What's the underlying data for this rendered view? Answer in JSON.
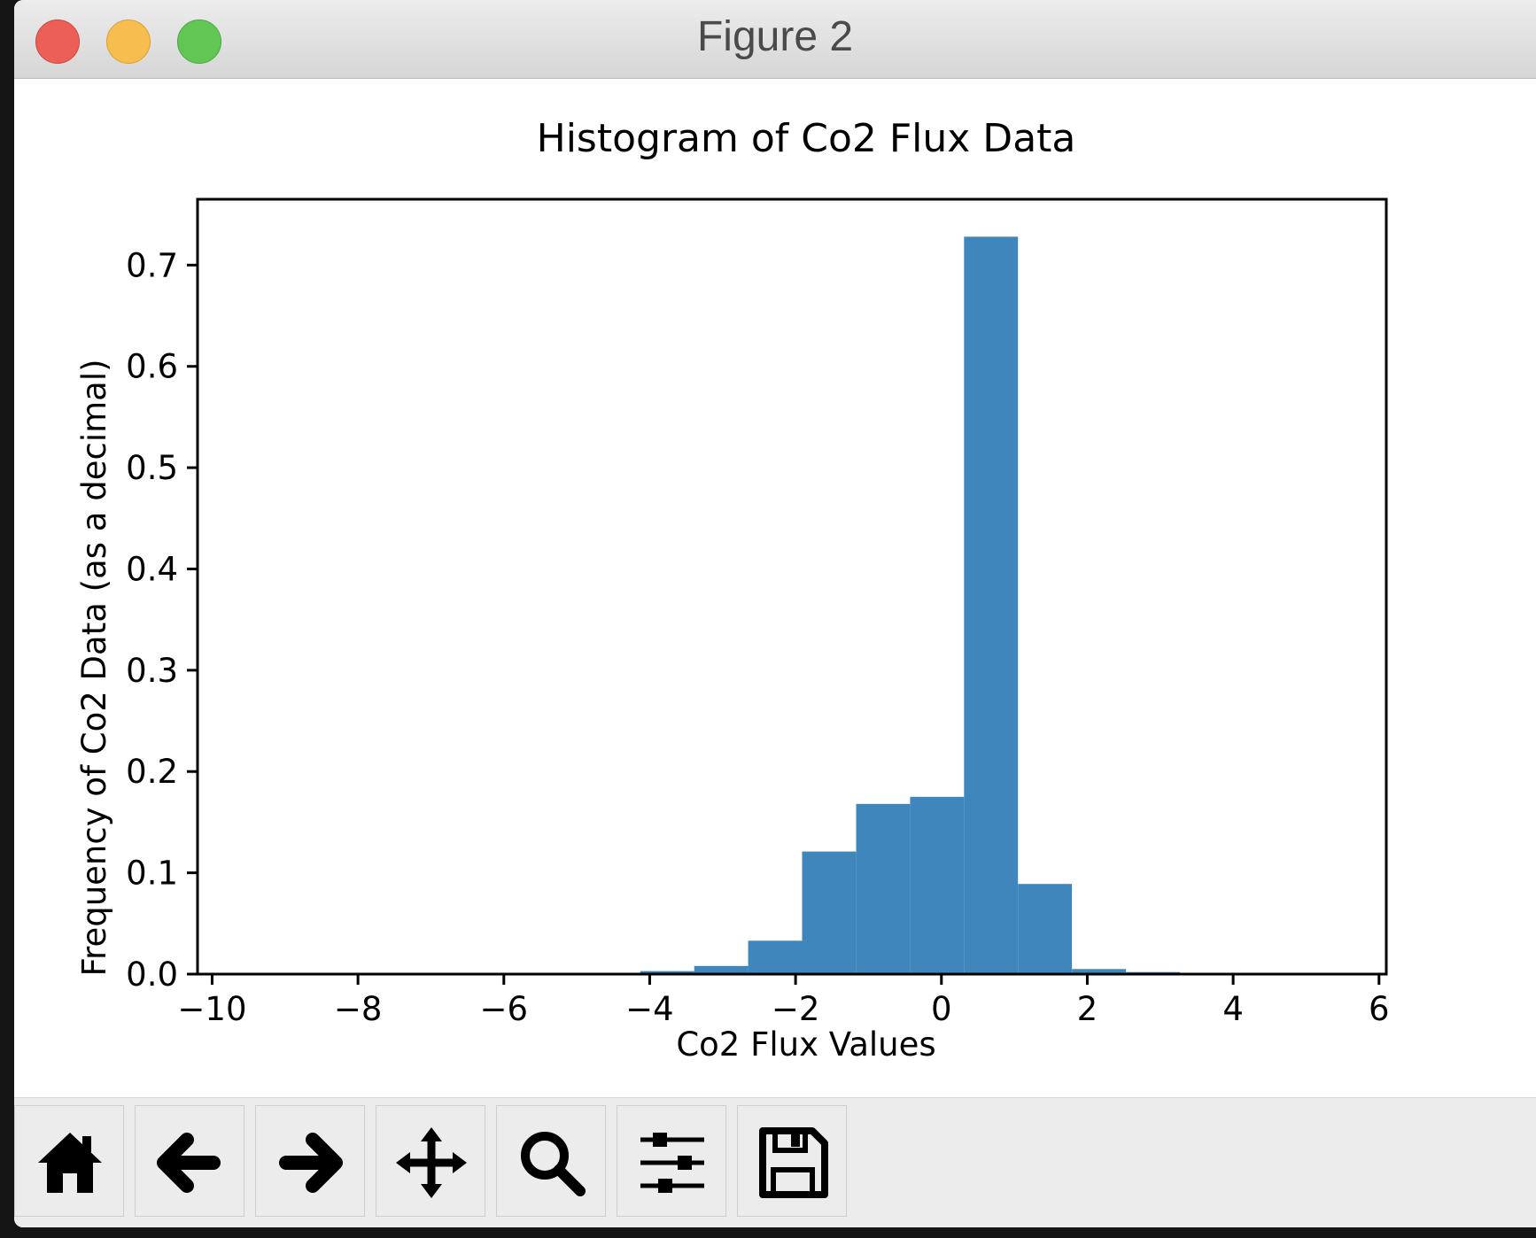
{
  "window": {
    "title": "Figure 2"
  },
  "toolbar": {
    "buttons": [
      {
        "icon": "home-icon"
      },
      {
        "icon": "back-arrow-icon"
      },
      {
        "icon": "forward-arrow-icon"
      },
      {
        "icon": "pan-move-icon"
      },
      {
        "icon": "zoom-magnifier-icon"
      },
      {
        "icon": "configure-subplots-icon"
      },
      {
        "icon": "save-floppy-icon"
      }
    ]
  },
  "chart_data": {
    "type": "bar",
    "title": "Histogram of Co2 Flux Data",
    "xlabel": "Co2 Flux Values",
    "ylabel": "Frequency of Co2 Data (as a decimal)",
    "xlim": [
      -10.2,
      6.1
    ],
    "ylim": [
      0,
      0.765
    ],
    "xticks": [
      -10,
      -8,
      -6,
      -4,
      -2,
      0,
      2,
      4,
      6
    ],
    "xtick_labels": [
      "−10",
      "−8",
      "−6",
      "−4",
      "−2",
      "0",
      "2",
      "4",
      "6"
    ],
    "yticks": [
      0.0,
      0.1,
      0.2,
      0.3,
      0.4,
      0.5,
      0.6,
      0.7
    ],
    "ytick_labels": [
      "0.0",
      "0.1",
      "0.2",
      "0.3",
      "0.4",
      "0.5",
      "0.6",
      "0.7"
    ],
    "bin_edges": [
      -10.05,
      -9.31,
      -8.57,
      -7.83,
      -7.09,
      -6.35,
      -5.61,
      -4.87,
      -4.13,
      -3.39,
      -2.65,
      -1.91,
      -1.17,
      -0.43,
      0.31,
      1.05,
      1.79,
      2.53,
      3.27,
      4.01,
      4.75,
      5.49,
      6.23
    ],
    "values": [
      0,
      0,
      0,
      0,
      0,
      0.001,
      0,
      0,
      0.003,
      0.008,
      0.033,
      0.121,
      0.168,
      0.175,
      0.728,
      0.089,
      0.005,
      0.002,
      0,
      0,
      0,
      0
    ],
    "bar_color": "#3f86bd",
    "grid": false
  }
}
